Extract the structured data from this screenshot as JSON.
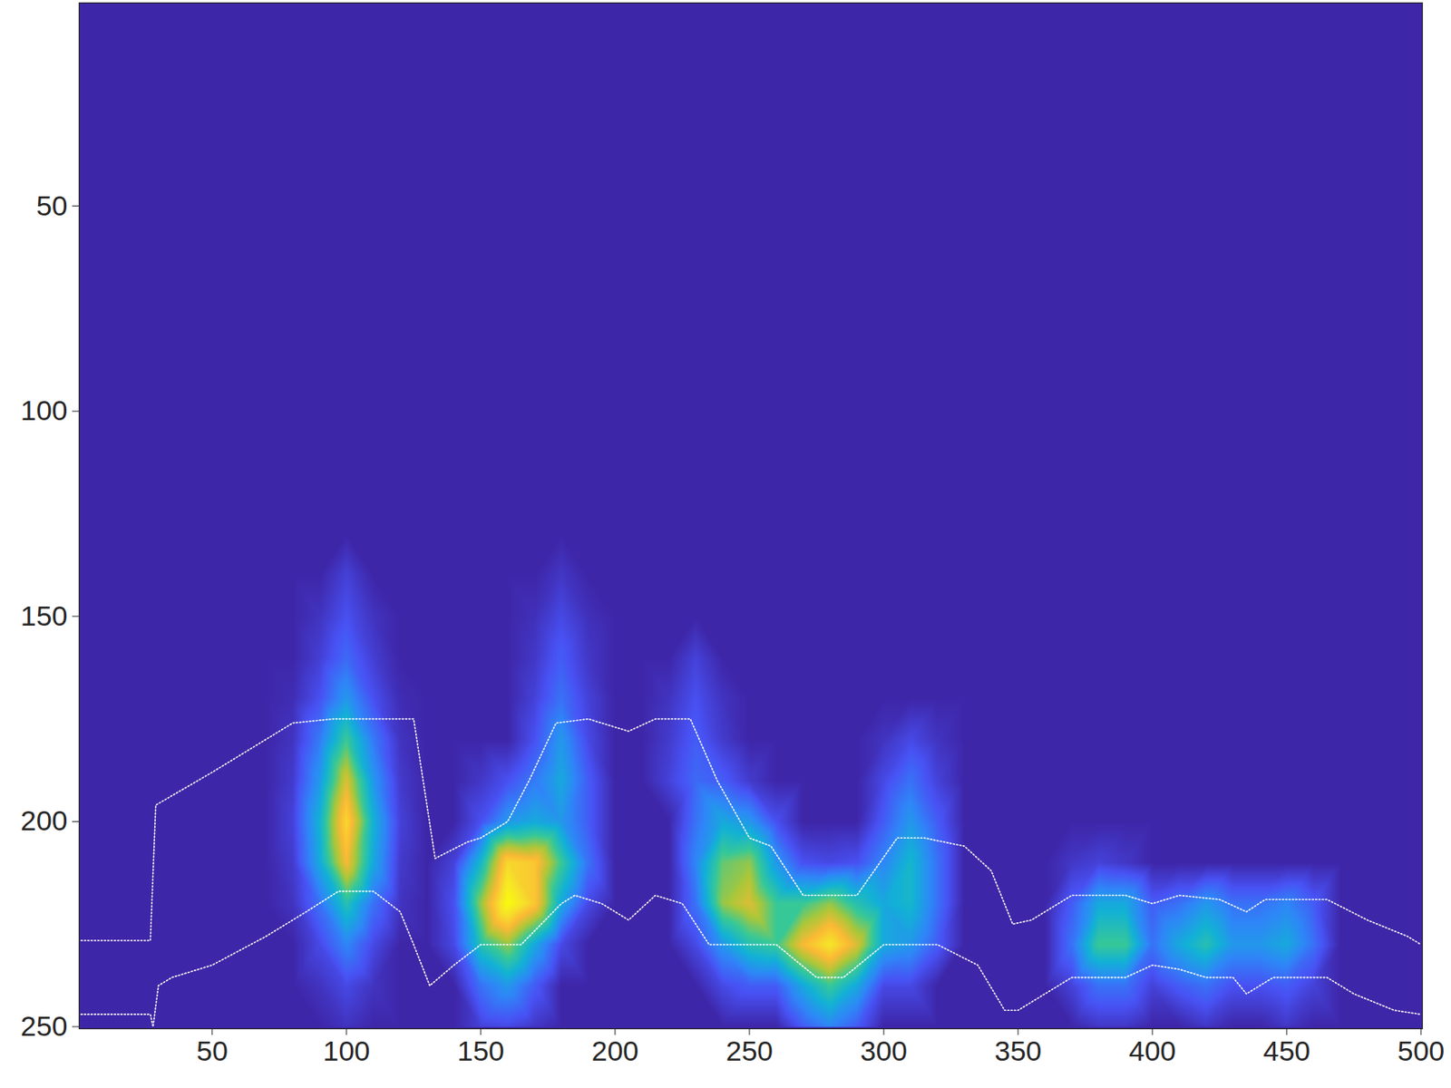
{
  "chart_data": {
    "type": "heatmap",
    "xlim": [
      0.5,
      500.5
    ],
    "ylim": [
      0.5,
      250.5
    ],
    "xticks": [
      50,
      100,
      150,
      200,
      250,
      300,
      350,
      400,
      450,
      500
    ],
    "yticks": [
      50,
      100,
      150,
      200,
      250
    ],
    "zlim": [
      0,
      1
    ],
    "cells": {
      "x": [
        0,
        10,
        20,
        30,
        40,
        50,
        60,
        70,
        80,
        90,
        100,
        110,
        120,
        130,
        140,
        150,
        160,
        170,
        180,
        190,
        200,
        210,
        220,
        230,
        240,
        250,
        260,
        270,
        280,
        290,
        300,
        310,
        320,
        330,
        340,
        350,
        360,
        370,
        380,
        390,
        400,
        410,
        420,
        430,
        440,
        450,
        460,
        470,
        480,
        490,
        500
      ],
      "y": [
        0,
        100,
        130,
        140,
        150,
        160,
        170,
        180,
        190,
        200,
        210,
        220,
        230,
        240,
        250
      ],
      "z": [
        [
          0,
          0,
          0,
          0,
          0,
          0,
          0,
          0,
          0,
          0,
          0,
          0,
          0,
          0,
          0,
          0,
          0,
          0,
          0,
          0,
          0,
          0,
          0,
          0,
          0,
          0,
          0,
          0,
          0,
          0,
          0,
          0,
          0,
          0,
          0,
          0,
          0,
          0,
          0,
          0,
          0,
          0,
          0,
          0,
          0,
          0,
          0,
          0,
          0,
          0,
          0
        ],
        [
          0,
          0,
          0,
          0,
          0,
          0,
          0,
          0,
          0,
          0,
          0,
          0,
          0,
          0,
          0,
          0,
          0,
          0,
          0,
          0,
          0,
          0,
          0,
          0,
          0,
          0,
          0,
          0,
          0,
          0,
          0,
          0,
          0,
          0,
          0,
          0,
          0,
          0,
          0,
          0,
          0,
          0,
          0,
          0,
          0,
          0,
          0,
          0,
          0,
          0,
          0
        ],
        [
          0,
          0,
          0,
          0,
          0,
          0,
          0,
          0,
          0,
          0,
          0,
          0,
          0,
          0,
          0,
          0,
          0,
          0,
          0,
          0,
          0,
          0,
          0,
          0,
          0,
          0,
          0,
          0,
          0,
          0,
          0,
          0,
          0,
          0,
          0,
          0,
          0,
          0,
          0,
          0,
          0,
          0,
          0,
          0,
          0,
          0,
          0,
          0,
          0,
          0,
          0
        ],
        [
          0,
          0,
          0,
          0,
          0,
          0,
          0,
          0,
          0,
          0,
          0.08,
          0,
          0,
          0,
          0,
          0,
          0,
          0,
          0.05,
          0,
          0,
          0,
          0,
          0,
          0,
          0,
          0,
          0,
          0,
          0,
          0,
          0,
          0,
          0,
          0,
          0,
          0,
          0,
          0,
          0,
          0,
          0,
          0,
          0,
          0,
          0,
          0,
          0,
          0,
          0,
          0
        ],
        [
          0,
          0,
          0,
          0,
          0,
          0,
          0,
          0,
          0,
          0.04,
          0.12,
          0.04,
          0,
          0,
          0,
          0,
          0,
          0.03,
          0.1,
          0.03,
          0,
          0,
          0,
          0,
          0,
          0,
          0,
          0,
          0,
          0,
          0,
          0,
          0,
          0,
          0,
          0,
          0,
          0,
          0,
          0,
          0,
          0,
          0,
          0,
          0,
          0,
          0,
          0,
          0,
          0,
          0
        ],
        [
          0,
          0,
          0,
          0,
          0,
          0,
          0,
          0,
          0,
          0.07,
          0.18,
          0.07,
          0,
          0,
          0,
          0,
          0,
          0.05,
          0.15,
          0.05,
          0,
          0,
          0,
          0.08,
          0,
          0,
          0,
          0,
          0,
          0,
          0,
          0,
          0,
          0,
          0,
          0,
          0,
          0,
          0,
          0,
          0,
          0,
          0,
          0,
          0,
          0,
          0,
          0,
          0,
          0,
          0
        ],
        [
          0,
          0,
          0,
          0,
          0,
          0,
          0,
          0,
          0.02,
          0.12,
          0.3,
          0.12,
          0.02,
          0,
          0,
          0,
          0,
          0.08,
          0.2,
          0.08,
          0,
          0,
          0.04,
          0.12,
          0.04,
          0,
          0,
          0,
          0,
          0,
          0,
          0,
          0,
          0,
          0,
          0,
          0,
          0,
          0,
          0,
          0,
          0,
          0,
          0,
          0,
          0,
          0,
          0,
          0,
          0,
          0
        ],
        [
          0,
          0,
          0,
          0,
          0,
          0,
          0,
          0,
          0.04,
          0.22,
          0.5,
          0.22,
          0.04,
          0,
          0,
          0,
          0,
          0.12,
          0.3,
          0.1,
          0,
          0,
          0.06,
          0.15,
          0.06,
          0,
          0,
          0,
          0,
          0,
          0.04,
          0.1,
          0.04,
          0,
          0,
          0,
          0,
          0,
          0,
          0,
          0,
          0,
          0,
          0,
          0,
          0,
          0,
          0,
          0,
          0,
          0
        ],
        [
          0,
          0,
          0,
          0,
          0,
          0,
          0,
          0,
          0.06,
          0.3,
          0.7,
          0.3,
          0.06,
          0,
          0,
          0.05,
          0.12,
          0.22,
          0.35,
          0.15,
          0,
          0,
          0.08,
          0.18,
          0.15,
          0.06,
          0,
          0,
          0,
          0,
          0.1,
          0.2,
          0.08,
          0,
          0,
          0,
          0,
          0,
          0,
          0,
          0,
          0,
          0,
          0,
          0,
          0,
          0,
          0,
          0,
          0,
          0
        ],
        [
          0,
          0,
          0,
          0,
          0,
          0,
          0,
          0,
          0.08,
          0.38,
          0.85,
          0.38,
          0.08,
          0,
          0,
          0.12,
          0.3,
          0.35,
          0.3,
          0.15,
          0,
          0,
          0,
          0.2,
          0.35,
          0.3,
          0.12,
          0,
          0,
          0,
          0.15,
          0.3,
          0.15,
          0,
          0,
          0,
          0,
          0,
          0,
          0,
          0,
          0,
          0,
          0,
          0,
          0,
          0,
          0,
          0,
          0,
          0
        ],
        [
          0,
          0,
          0,
          0,
          0,
          0,
          0,
          0,
          0.06,
          0.35,
          0.75,
          0.35,
          0.06,
          0,
          0.08,
          0.4,
          0.85,
          0.8,
          0.5,
          0.2,
          0,
          0,
          0,
          0.25,
          0.55,
          0.6,
          0.3,
          0.12,
          0.1,
          0.12,
          0.25,
          0.4,
          0.2,
          0,
          0,
          0,
          0,
          0.05,
          0.08,
          0.05,
          0,
          0,
          0,
          0,
          0,
          0,
          0,
          0,
          0,
          0,
          0
        ],
        [
          0,
          0,
          0,
          0,
          0,
          0,
          0,
          0,
          0.04,
          0.2,
          0.45,
          0.2,
          0.04,
          0,
          0.12,
          0.6,
          1,
          0.8,
          0.35,
          0.1,
          0,
          0,
          0,
          0.2,
          0.6,
          0.7,
          0.5,
          0.5,
          0.6,
          0.45,
          0.35,
          0.4,
          0.2,
          0,
          0,
          0,
          0,
          0.15,
          0.35,
          0.35,
          0.15,
          0.2,
          0.3,
          0.2,
          0.2,
          0.25,
          0.15,
          0,
          0,
          0,
          0
        ],
        [
          0,
          0,
          0,
          0,
          0,
          0,
          0,
          0,
          0,
          0.1,
          0.25,
          0.1,
          0,
          0,
          0.1,
          0.45,
          0.6,
          0.35,
          0.1,
          0,
          0,
          0,
          0,
          0.1,
          0.3,
          0.45,
          0.5,
          0.75,
          0.9,
          0.7,
          0.35,
          0.3,
          0.15,
          0,
          0,
          0,
          0,
          0.2,
          0.5,
          0.5,
          0.2,
          0.35,
          0.45,
          0.3,
          0.3,
          0.35,
          0.2,
          0,
          0,
          0,
          0
        ],
        [
          0,
          0,
          0,
          0,
          0,
          0,
          0,
          0,
          0,
          0.04,
          0.1,
          0.04,
          0,
          0,
          0,
          0.2,
          0.3,
          0.15,
          0,
          0,
          0,
          0,
          0,
          0,
          0.1,
          0.15,
          0.15,
          0.35,
          0.5,
          0.35,
          0.1,
          0.1,
          0,
          0,
          0,
          0,
          0,
          0.08,
          0.2,
          0.2,
          0.08,
          0.15,
          0.2,
          0.12,
          0.12,
          0.15,
          0.08,
          0,
          0,
          0,
          0
        ],
        [
          0,
          0,
          0,
          0,
          0,
          0,
          0,
          0,
          0,
          0,
          0.04,
          0,
          0,
          0,
          0,
          0.08,
          0.1,
          0.05,
          0,
          0,
          0,
          0,
          0,
          0,
          0,
          0,
          0,
          0.15,
          0.25,
          0.15,
          0,
          0,
          0,
          0,
          0,
          0,
          0,
          0,
          0.05,
          0.05,
          0,
          0,
          0.05,
          0,
          0,
          0.05,
          0,
          0,
          0,
          0,
          0
        ]
      ]
    },
    "series": [
      {
        "color": "white",
        "line_style": "dotted",
        "x": [
          0,
          27,
          29,
          50,
          80,
          95,
          125,
          133,
          145,
          150,
          160,
          168,
          178,
          190,
          205,
          215,
          228,
          238,
          250,
          258,
          270,
          290,
          305,
          315,
          330,
          340,
          348,
          355,
          370,
          390,
          400,
          410,
          425,
          435,
          442,
          465,
          480,
          495,
          500
        ],
        "y": [
          229,
          229,
          196,
          188,
          176,
          175,
          175,
          209,
          205,
          204,
          200,
          190,
          176,
          175,
          178,
          175,
          175,
          190,
          204,
          206,
          218,
          218,
          204,
          204,
          206,
          212,
          225,
          224,
          218,
          218,
          220,
          218,
          219,
          222,
          219,
          219,
          224,
          228,
          230
        ]
      },
      {
        "color": "white",
        "line_style": "dotted",
        "x": [
          0,
          27,
          28,
          30,
          35,
          50,
          70,
          85,
          97,
          110,
          120,
          125,
          131,
          140,
          150,
          165,
          180,
          185,
          195,
          205,
          215,
          225,
          235,
          260,
          275,
          285,
          300,
          320,
          335,
          345,
          350,
          360,
          370,
          390,
          400,
          410,
          420,
          430,
          435,
          445,
          465,
          475,
          490,
          500
        ],
        "y": [
          247,
          247,
          250,
          240,
          238,
          235,
          228,
          222,
          217,
          217,
          222,
          230,
          240,
          235,
          230,
          230,
          220,
          218,
          220,
          224,
          218,
          220,
          230,
          230,
          238,
          238,
          230,
          230,
          235,
          246,
          246,
          242,
          238,
          238,
          235,
          236,
          238,
          238,
          242,
          238,
          238,
          242,
          246,
          247
        ]
      }
    ]
  }
}
